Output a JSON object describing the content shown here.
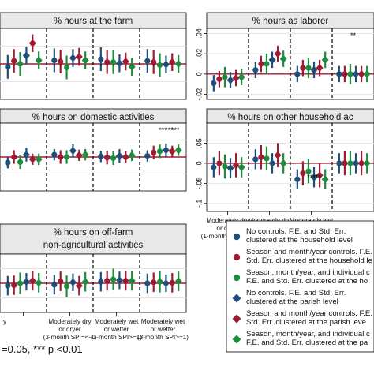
{
  "colors": {
    "navy": "#1f4e79",
    "maroon": "#9e1b32",
    "green": "#1d8c3c",
    "zero_line": "#9e1b32",
    "panel_header": "#e8e8e8",
    "frame": "#000000",
    "grid": "#e4e4e4"
  },
  "legend": {
    "entries": [
      {
        "lines": [
          "No controls. F.E. and Std. Err.",
          "clustered at the household level"
        ],
        "color": "navy",
        "marker": "circle"
      },
      {
        "lines": [
          "Season and month/year controls. F.E. and",
          "Std. Err. clustered at the household le"
        ],
        "color": "maroon",
        "marker": "circle"
      },
      {
        "lines": [
          "Season, month/year, and individual c",
          "F.E. and Std. Err. clustered at the ho"
        ],
        "color": "green",
        "marker": "circle"
      },
      {
        "lines": [
          "No controls. F.E. and Std. Err.",
          "clustered at the parish level"
        ],
        "color": "navy",
        "marker": "diamond"
      },
      {
        "lines": [
          "Season and month/year controls. F.E.",
          "Std. Err. clustered at the parish leve"
        ],
        "color": "maroon",
        "marker": "diamond"
      },
      {
        "lines": [
          "Season, month/year, and individual c",
          "F.E. and Std. Err. clustered at the pa"
        ],
        "color": "green",
        "marker": "diamond"
      }
    ]
  },
  "footnote": "=0.05, *** p <0.01",
  "chart_data": [
    {
      "type": "scatter",
      "title": "% hours at the farm",
      "categories": [
        "1",
        "2",
        "3",
        "4"
      ],
      "ylim": [
        -0.06,
        0.06
      ],
      "yticks": [],
      "xticklabels": [],
      "stars": [],
      "series": [
        {
          "values": [
            [
              -0.005,
              0.005,
              0.0,
              0.014,
              0.035,
              0.006
            ],
            [
              0.006,
              0.004,
              -0.006,
              0.01,
              0.012,
              0.006
            ],
            [
              0.008,
              0.003,
              0.003,
              0.001,
              0.004,
              -0.005
            ],
            [
              0.005,
              0.003,
              -0.002,
              -0.001,
              0.003,
              0.0
            ]
          ],
          "ci": [
            0.02,
            0.02,
            0.02,
            0.015,
            0.015,
            0.015
          ]
        }
      ]
    },
    {
      "type": "scatter",
      "title": "% hours as laborer",
      "categories": [
        "1",
        "2",
        "3",
        "4"
      ],
      "ylim": [
        -0.025,
        0.045
      ],
      "yticks": [
        0.04,
        0.02,
        0,
        -0.02
      ],
      "yticklabels": [
        ".04",
        ".02",
        "0",
        "-.02"
      ],
      "xticklabels": [],
      "stars": [
        {
          "group": 3,
          "text": "**"
        }
      ],
      "series": [
        {
          "values": [
            [
              -0.009,
              -0.005,
              -0.003,
              -0.006,
              -0.004,
              -0.003
            ],
            [
              0.004,
              0.01,
              0.01,
              0.014,
              0.02,
              0.015
            ],
            [
              0.0,
              0.006,
              0.006,
              0.004,
              0.006,
              0.014
            ],
            [
              0.0,
              0.0,
              0.0,
              0.0,
              0.0,
              0.0
            ]
          ],
          "ci": [
            0.008,
            0.008,
            0.01,
            0.008,
            0.008,
            0.008
          ]
        }
      ]
    },
    {
      "type": "scatter",
      "title": "% hours on domestic activities",
      "categories": [
        "1",
        "2",
        "3",
        "4"
      ],
      "ylim": [
        -0.06,
        0.06
      ],
      "yticks": [],
      "xticklabels": [],
      "stars": [
        {
          "group": 3,
          "text": "***"
        },
        {
          "group": 3,
          "text": "***"
        },
        {
          "group": 3,
          "text": "***"
        }
      ],
      "series": [
        {
          "values": [
            [
              -0.01,
              0.0,
              -0.009,
              0.004,
              -0.004,
              -0.004
            ],
            [
              0.004,
              0.0,
              0.0,
              0.011,
              0.003,
              0.004
            ],
            [
              0.001,
              -0.001,
              -0.002,
              0.002,
              0.0,
              0.003
            ],
            [
              0.002,
              0.008,
              0.01,
              0.012,
              0.01,
              0.012
            ]
          ],
          "ci": [
            0.01,
            0.012,
            0.012,
            0.012,
            0.01,
            0.01
          ]
        }
      ]
    },
    {
      "type": "scatter",
      "title": "% hours on other household ac",
      "categories": [
        "1",
        "2",
        "3",
        "4"
      ],
      "ylim": [
        -0.12,
        0.1
      ],
      "yticks": [
        0.05,
        0,
        -0.05,
        -0.1
      ],
      "yticklabels": [
        ".05",
        "0",
        "-.05",
        "-.1"
      ],
      "xticklabels": [
        [
          "Moderately dry",
          "or dryer",
          "(1-month SPI=<-1)"
        ],
        [
          "Moderately dry",
          "or dryer",
          "(3-month SPI=<-1)"
        ],
        [
          "Moderately wet",
          "or wetter",
          "(1-month SPI>=1)"
        ],
        []
      ],
      "stars": [
        {
          "group": 2,
          "text": "***"
        },
        {
          "group": 2,
          "text": "***"
        }
      ],
      "series": [
        {
          "values": [
            [
              -0.01,
              0.0,
              -0.008,
              -0.012,
              -0.005,
              -0.01
            ],
            [
              0.01,
              0.015,
              0.012,
              0.0,
              0.02,
              0.0
            ],
            [
              -0.04,
              -0.025,
              -0.02,
              -0.035,
              -0.03,
              -0.04
            ],
            [
              0.0,
              0.0,
              0.0,
              0.0,
              0.0,
              0.0
            ]
          ],
          "ci": [
            0.025,
            0.03,
            0.03,
            0.025,
            0.03,
            0.025
          ]
        }
      ]
    },
    {
      "type": "scatter",
      "title": "% hours on off-farm",
      "subtitle": "non-agricultural activities",
      "categories": [
        "1",
        "2",
        "3",
        "4"
      ],
      "ylim": [
        -0.06,
        0.06
      ],
      "yticks": [],
      "xticklabels": [
        [
          "y"
        ],
        [
          "Moderately dry",
          "or dryer",
          "(3-month SPI=<-1)"
        ],
        [
          "Moderately wet",
          "or wetter",
          "(1-month SPI>=1)"
        ],
        [
          "Moderately wet",
          "or wetter",
          "(3-month SPI>=1)"
        ]
      ],
      "stars": [],
      "series": [
        {
          "values": [
            [
              -0.005,
              -0.004,
              0.0,
              0.003,
              0.005,
              0.001
            ],
            [
              -0.003,
              0.004,
              -0.006,
              0.002,
              -0.005,
              0.003
            ],
            [
              0.003,
              0.005,
              0.008,
              0.006,
              0.005,
              0.005
            ],
            [
              0.0,
              0.002,
              0.003,
              0.0,
              0.001,
              0.004
            ]
          ],
          "ci": [
            0.02,
            0.02,
            0.022,
            0.018,
            0.02,
            0.02
          ]
        }
      ]
    }
  ]
}
